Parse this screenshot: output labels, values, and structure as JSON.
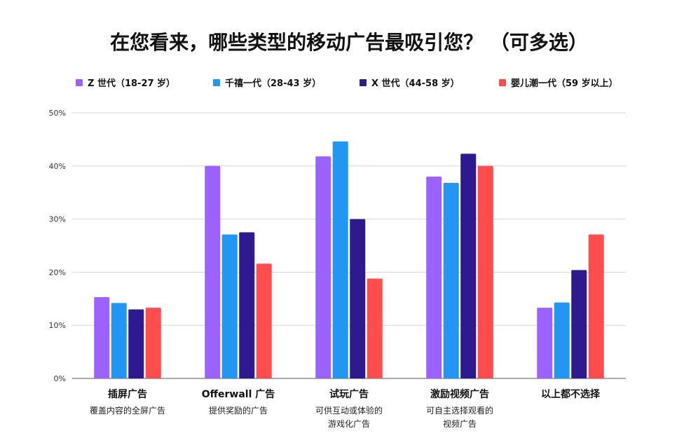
{
  "chart_data": {
    "type": "bar",
    "title": "在您看来，哪些类型的移动广告最吸引您？ （可多选）",
    "xlabel": "",
    "ylabel": "",
    "ylim": [
      0,
      50
    ],
    "y_ticks": [
      "0%",
      "10%",
      "20%",
      "30%",
      "40%",
      "50%"
    ],
    "grid": true,
    "legend_position": "top",
    "categories": [
      {
        "label": "插屏广告",
        "sublabel": [
          "覆盖内容的全屏广告"
        ]
      },
      {
        "label": "Offerwall 广告",
        "sublabel": [
          "提供奖励的广告"
        ]
      },
      {
        "label": "试玩广告",
        "sublabel": [
          "可供互动或体验的",
          "游戏化广告"
        ]
      },
      {
        "label": "激励视频广告",
        "sublabel": [
          "可自主选择观看的",
          "视频广告"
        ]
      },
      {
        "label": "以上都不选择",
        "sublabel": []
      }
    ],
    "series": [
      {
        "name": "Z 世代（18-27 岁）",
        "color": "#9B62FF",
        "values": [
          15.3,
          40,
          41.8,
          38,
          13.3
        ]
      },
      {
        "name": "千禧一代（28-43 岁）",
        "color": "#2196F3",
        "values": [
          14.2,
          27.1,
          44.6,
          36.8,
          14.3
        ]
      },
      {
        "name": "X 世代（44-58 岁）",
        "color": "#2E1A8E",
        "values": [
          13,
          27.5,
          30,
          42.3,
          20.4
        ]
      },
      {
        "name": "婴儿潮一代（59 岁以上）",
        "color": "#FF4C4C",
        "values": [
          13.3,
          21.6,
          18.8,
          40,
          27.1
        ]
      }
    ]
  }
}
